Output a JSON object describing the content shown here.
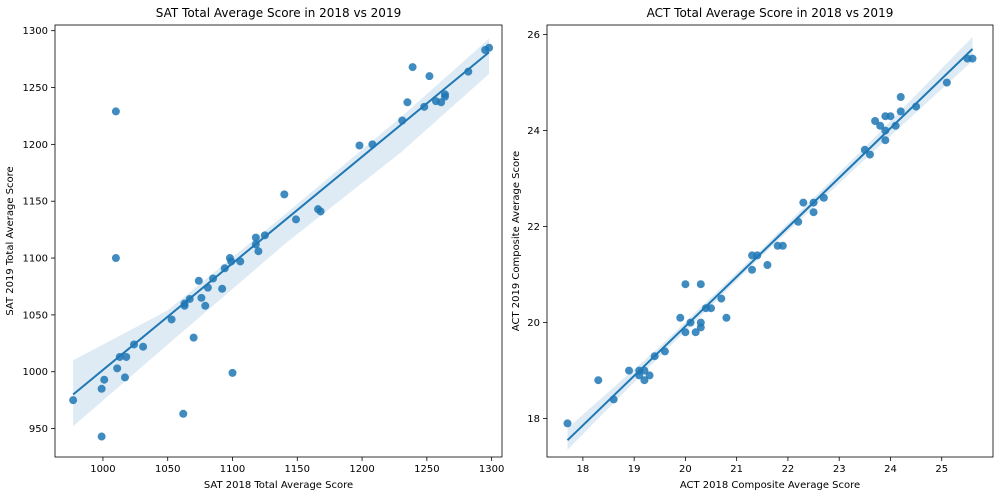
{
  "chart_data": [
    {
      "type": "scatter",
      "title": "SAT Total Average Score in 2018 vs 2019",
      "xlabel": "SAT 2018 Total Average Score",
      "ylabel": "SAT 2019 Total Average Score",
      "xlim": [
        963,
        1308
      ],
      "ylim": [
        925,
        1305
      ],
      "xticks": [
        1000,
        1050,
        1100,
        1150,
        1200,
        1250,
        1300
      ],
      "yticks": [
        950,
        1000,
        1050,
        1100,
        1150,
        1200,
        1250,
        1300
      ],
      "grid": false,
      "color": "#1f77b4",
      "regression": {
        "x0": 977,
        "y0": 980,
        "x1": 1298,
        "y1": 1281
      },
      "confidence_band": {
        "x": [
          977,
          1050,
          1140,
          1230,
          1298
        ],
        "lower": [
          952,
          1024,
          1112,
          1193,
          1262
        ],
        "upper": [
          1010,
          1054,
          1138,
          1224,
          1293
        ]
      },
      "points": [
        [
          977,
          975
        ],
        [
          999,
          943
        ],
        [
          999,
          985
        ],
        [
          1001,
          993
        ],
        [
          1010,
          1229
        ],
        [
          1010,
          1100
        ],
        [
          1011,
          1003
        ],
        [
          1013,
          1013
        ],
        [
          1017,
          995
        ],
        [
          1018,
          1013
        ],
        [
          1024,
          1024
        ],
        [
          1031,
          1022
        ],
        [
          1053,
          1046
        ],
        [
          1062,
          963
        ],
        [
          1063,
          1058
        ],
        [
          1063,
          1060
        ],
        [
          1067,
          1064
        ],
        [
          1070,
          1030
        ],
        [
          1074,
          1080
        ],
        [
          1076,
          1065
        ],
        [
          1079,
          1058
        ],
        [
          1081,
          1074
        ],
        [
          1085,
          1082
        ],
        [
          1092,
          1073
        ],
        [
          1094,
          1091
        ],
        [
          1098,
          1100
        ],
        [
          1099,
          1097
        ],
        [
          1100,
          999
        ],
        [
          1106,
          1097
        ],
        [
          1118,
          1118
        ],
        [
          1118,
          1112
        ],
        [
          1120,
          1106
        ],
        [
          1125,
          1120
        ],
        [
          1140,
          1156
        ],
        [
          1149,
          1134
        ],
        [
          1166,
          1143
        ],
        [
          1168,
          1141
        ],
        [
          1198,
          1199
        ],
        [
          1208,
          1200
        ],
        [
          1231,
          1221
        ],
        [
          1235,
          1237
        ],
        [
          1239,
          1268
        ],
        [
          1248,
          1233
        ],
        [
          1252,
          1260
        ],
        [
          1257,
          1238
        ],
        [
          1261,
          1237
        ],
        [
          1264,
          1242
        ],
        [
          1264,
          1244
        ],
        [
          1282,
          1264
        ],
        [
          1295,
          1283
        ],
        [
          1298,
          1285
        ]
      ]
    },
    {
      "type": "scatter",
      "title": "ACT Total Average Score in 2018 vs 2019",
      "xlabel": "ACT 2018 Composite Average Score",
      "ylabel": "ACT 2019 Composite Average Score",
      "xlim": [
        17.3,
        26.0
      ],
      "ylim": [
        17.2,
        26.2
      ],
      "xticks": [
        18,
        19,
        20,
        21,
        22,
        23,
        24,
        25
      ],
      "yticks": [
        18,
        20,
        22,
        24,
        26
      ],
      "grid": false,
      "color": "#1f77b4",
      "regression": {
        "x0": 17.7,
        "y0": 17.55,
        "x1": 25.6,
        "y1": 25.7
      },
      "confidence_band": {
        "x": [
          17.7,
          19.5,
          21.5,
          23.5,
          25.6
        ],
        "lower": [
          17.35,
          19.3,
          21.4,
          23.4,
          25.45
        ],
        "upper": [
          17.8,
          19.5,
          21.55,
          23.65,
          25.95
        ]
      },
      "points": [
        [
          17.7,
          17.9
        ],
        [
          18.3,
          18.8
        ],
        [
          18.6,
          18.4
        ],
        [
          18.9,
          19.0
        ],
        [
          19.1,
          18.9
        ],
        [
          19.1,
          19.0
        ],
        [
          19.2,
          19.0
        ],
        [
          19.2,
          18.8
        ],
        [
          19.3,
          18.9
        ],
        [
          19.4,
          19.3
        ],
        [
          19.6,
          19.4
        ],
        [
          19.9,
          20.1
        ],
        [
          20.0,
          19.8
        ],
        [
          20.0,
          20.8
        ],
        [
          20.1,
          20.0
        ],
        [
          20.2,
          19.8
        ],
        [
          20.3,
          19.9
        ],
        [
          20.3,
          20.0
        ],
        [
          20.3,
          20.8
        ],
        [
          20.4,
          20.3
        ],
        [
          20.5,
          20.3
        ],
        [
          20.7,
          20.5
        ],
        [
          20.8,
          20.1
        ],
        [
          21.3,
          21.1
        ],
        [
          21.3,
          21.4
        ],
        [
          21.4,
          21.4
        ],
        [
          21.6,
          21.2
        ],
        [
          21.8,
          21.6
        ],
        [
          21.9,
          21.6
        ],
        [
          22.2,
          22.1
        ],
        [
          22.3,
          22.5
        ],
        [
          22.5,
          22.3
        ],
        [
          22.5,
          22.5
        ],
        [
          22.7,
          22.6
        ],
        [
          23.5,
          23.6
        ],
        [
          23.6,
          23.5
        ],
        [
          23.7,
          24.2
        ],
        [
          23.8,
          24.1
        ],
        [
          23.9,
          23.8
        ],
        [
          23.9,
          24.0
        ],
        [
          23.9,
          24.3
        ],
        [
          24.0,
          24.3
        ],
        [
          24.1,
          24.1
        ],
        [
          24.2,
          24.4
        ],
        [
          24.2,
          24.7
        ],
        [
          24.5,
          24.5
        ],
        [
          25.1,
          25.0
        ],
        [
          25.5,
          25.5
        ],
        [
          25.6,
          25.5
        ]
      ]
    }
  ]
}
